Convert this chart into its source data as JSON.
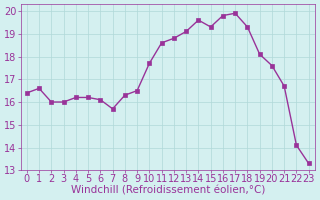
{
  "x": [
    0,
    1,
    2,
    3,
    4,
    5,
    6,
    7,
    8,
    9,
    10,
    11,
    12,
    13,
    14,
    15,
    16,
    17,
    18,
    19,
    20,
    21,
    22,
    23
  ],
  "y": [
    16.4,
    16.6,
    16.0,
    16.0,
    16.2,
    16.2,
    16.1,
    15.7,
    16.3,
    16.5,
    17.7,
    18.6,
    18.8,
    19.1,
    19.6,
    19.3,
    19.8,
    19.9,
    19.3,
    18.1,
    17.6,
    16.7,
    14.1,
    13.3
  ],
  "line_color": "#993399",
  "marker_color": "#993399",
  "bg_color": "#d4f0f0",
  "grid_color": "#b0d8d8",
  "xlabel": "Windchill (Refroidissement éolien,°C)",
  "xlim": [
    -0.5,
    23.5
  ],
  "ylim": [
    13,
    20.3
  ],
  "yticks": [
    13,
    14,
    15,
    16,
    17,
    18,
    19,
    20
  ],
  "xticks": [
    0,
    1,
    2,
    3,
    4,
    5,
    6,
    7,
    8,
    9,
    10,
    11,
    12,
    13,
    14,
    15,
    16,
    17,
    18,
    19,
    20,
    21,
    22,
    23
  ],
  "tick_color": "#993399",
  "font_size": 7,
  "xlabel_fontsize": 7.5
}
